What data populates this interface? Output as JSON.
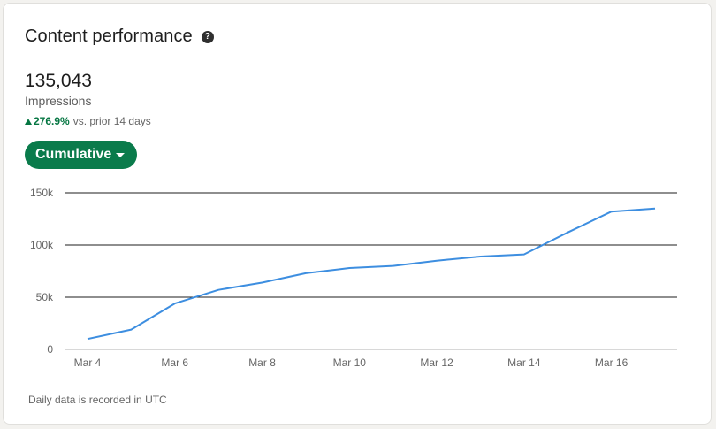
{
  "card": {
    "title": "Content performance",
    "help_icon": "question-circle-icon",
    "metric_value": "135,043",
    "metric_label": "Impressions",
    "trend_icon": "triangle-up-icon",
    "trend_pct": "276.9%",
    "trend_text": "vs. prior 14 days",
    "dropdown_label": "Cumulative",
    "footnote": "Daily data is recorded in UTC"
  },
  "colors": {
    "accent": "#0a7b4b",
    "trend_positive": "#057642",
    "line": "#3d8ee0",
    "gridline": "#1d1d1d"
  },
  "chart_data": {
    "type": "line",
    "title": "",
    "xlabel": "",
    "ylabel": "",
    "ylim": [
      0,
      150000
    ],
    "yticks": [
      0,
      50000,
      100000,
      150000
    ],
    "ytick_labels": [
      "0",
      "50k",
      "100k",
      "150k"
    ],
    "xtick_labels": [
      "Mar 4",
      "Mar 6",
      "Mar 8",
      "Mar 10",
      "Mar 12",
      "Mar 14",
      "Mar 16"
    ],
    "legend": "none",
    "grid": "horizontal",
    "x": [
      "Mar 4",
      "Mar 5",
      "Mar 6",
      "Mar 7",
      "Mar 8",
      "Mar 9",
      "Mar 10",
      "Mar 11",
      "Mar 12",
      "Mar 13",
      "Mar 14",
      "Mar 15",
      "Mar 16",
      "Mar 17"
    ],
    "series": [
      {
        "values": [
          10000,
          19000,
          44000,
          57000,
          64000,
          73000,
          78000,
          80000,
          85000,
          89000,
          91000,
          112000,
          132000,
          135000
        ]
      }
    ]
  }
}
